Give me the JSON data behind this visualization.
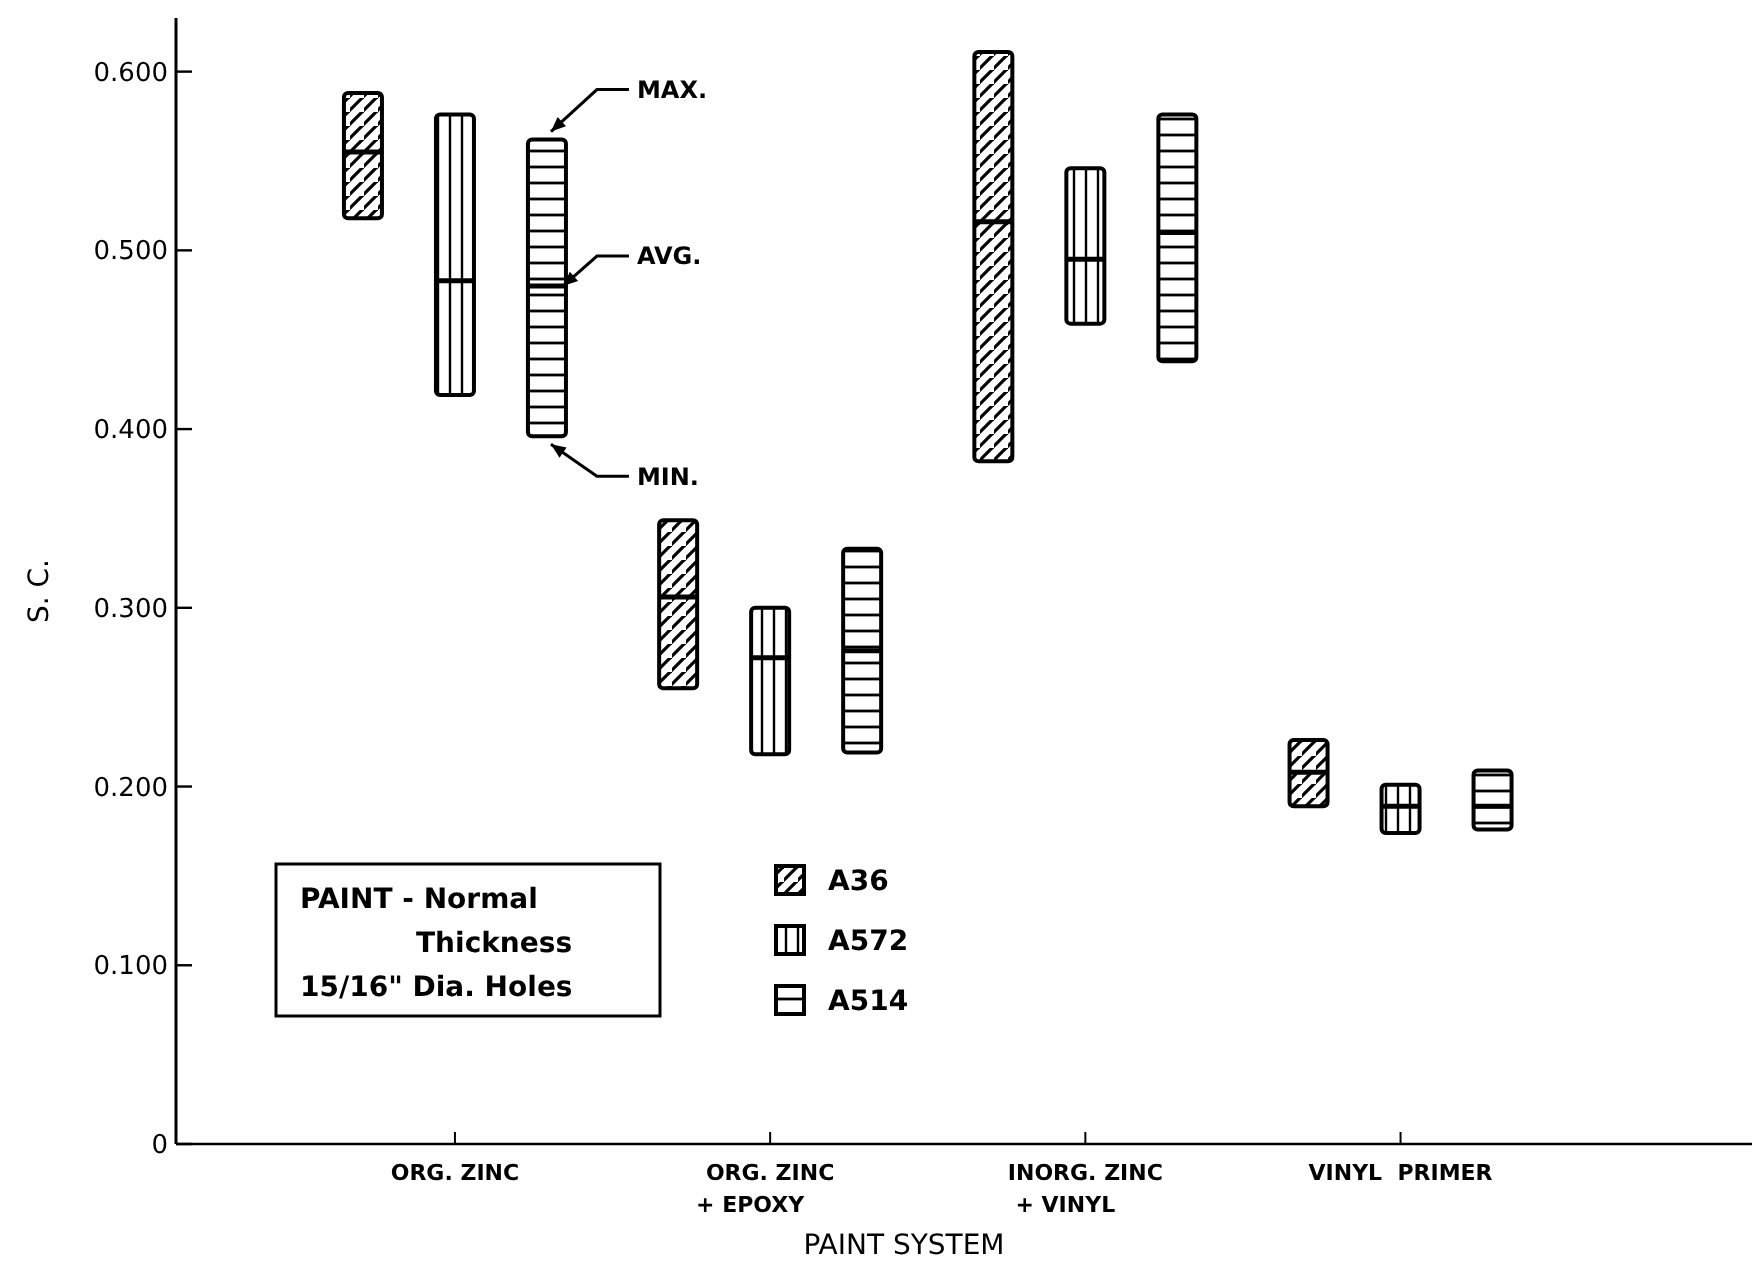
{
  "chart_data": {
    "type": "box",
    "xlabel": "PAINT SYSTEM",
    "ylabel": "S. C.",
    "categories": [
      "ORG. ZINC",
      "ORG. ZINC\n+ EPOXY",
      "INORG. ZINC\n+ VINYL",
      "VINYL  PRIMER"
    ],
    "ylim": [
      0,
      0.63
    ],
    "yticks": [
      {
        "value": 0,
        "label": "0"
      },
      {
        "value": 0.1,
        "label": "0.100"
      },
      {
        "value": 0.2,
        "label": "0.200"
      },
      {
        "value": 0.3,
        "label": "0.300"
      },
      {
        "value": 0.4,
        "label": "0.400"
      },
      {
        "value": 0.5,
        "label": "0.500"
      },
      {
        "value": 0.6,
        "label": "0.600"
      }
    ],
    "series": [
      {
        "name": "A36",
        "color": "#000000",
        "boxes": [
          {
            "low": 0.518,
            "q1": 0.518,
            "median": 0.555,
            "q3": 0.588,
            "high": 0.588
          },
          {
            "low": 0.255,
            "q1": 0.255,
            "median": 0.306,
            "q3": 0.349,
            "high": 0.349
          },
          {
            "low": 0.382,
            "q1": 0.382,
            "median": 0.516,
            "q3": 0.611,
            "high": 0.611
          },
          {
            "low": 0.189,
            "q1": 0.189,
            "median": 0.208,
            "q3": 0.226,
            "high": 0.226
          }
        ]
      },
      {
        "name": "A572",
        "color": "#000000",
        "boxes": [
          {
            "low": 0.419,
            "q1": 0.419,
            "median": 0.483,
            "q3": 0.576,
            "high": 0.576
          },
          {
            "low": 0.218,
            "q1": 0.218,
            "median": 0.272,
            "q3": 0.3,
            "high": 0.3
          },
          {
            "low": 0.459,
            "q1": 0.459,
            "median": 0.495,
            "q3": 0.546,
            "high": 0.546
          },
          {
            "low": 0.174,
            "q1": 0.174,
            "median": 0.189,
            "q3": 0.201,
            "high": 0.201
          }
        ]
      },
      {
        "name": "A514",
        "color": "#000000",
        "boxes": [
          {
            "low": 0.396,
            "q1": 0.396,
            "median": 0.48,
            "q3": 0.562,
            "high": 0.562
          },
          {
            "low": 0.219,
            "q1": 0.219,
            "median": 0.276,
            "q3": 0.333,
            "high": 0.333
          },
          {
            "low": 0.438,
            "q1": 0.438,
            "median": 0.51,
            "q3": 0.576,
            "high": 0.576
          },
          {
            "low": 0.176,
            "q1": 0.176,
            "median": 0.189,
            "q3": 0.209,
            "high": 0.209
          }
        ]
      }
    ],
    "legend": "bottom",
    "annotations": [
      "MAX.",
      "AVG.",
      "MIN.",
      "PAINT - Normal\nThickness\n15/16\" Dia. Holes"
    ]
  }
}
